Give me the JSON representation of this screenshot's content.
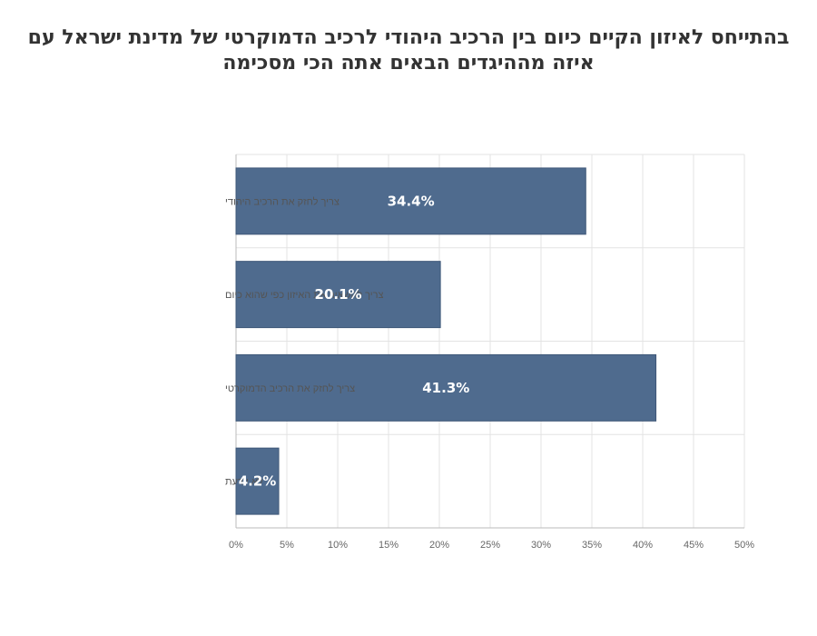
{
  "title": {
    "line1": "בהתייחס לאיזון הקיים כיום בין הרכיב היהודי לרכיב הדמוקרטי של מדינת ישראל עם",
    "line2": "איזה מההיגדים הבאים אתה הכי מסכימה"
  },
  "chart_data": {
    "type": "bar",
    "orientation": "horizontal",
    "categories": [
      "צריך לחזק את הרכיב היהודי",
      "צריך להשאיר את האיזון כפי שהוא כיום",
      "צריך לחזק את הרכיב הדמוקרטי",
      "לא יודעת"
    ],
    "values": [
      34.4,
      20.1,
      41.3,
      4.2
    ],
    "data_labels": [
      "34.4%",
      "20.1%",
      "41.3%",
      "4.2%"
    ],
    "xlim": [
      0,
      50
    ],
    "xticks": [
      0,
      5,
      10,
      15,
      20,
      25,
      30,
      35,
      40,
      45,
      50
    ],
    "xtick_labels": [
      "0%",
      "5%",
      "10%",
      "15%",
      "20%",
      "25%",
      "30%",
      "35%",
      "40%",
      "45%",
      "50%"
    ],
    "bar_color": "#4f6b8e",
    "grid": true
  }
}
